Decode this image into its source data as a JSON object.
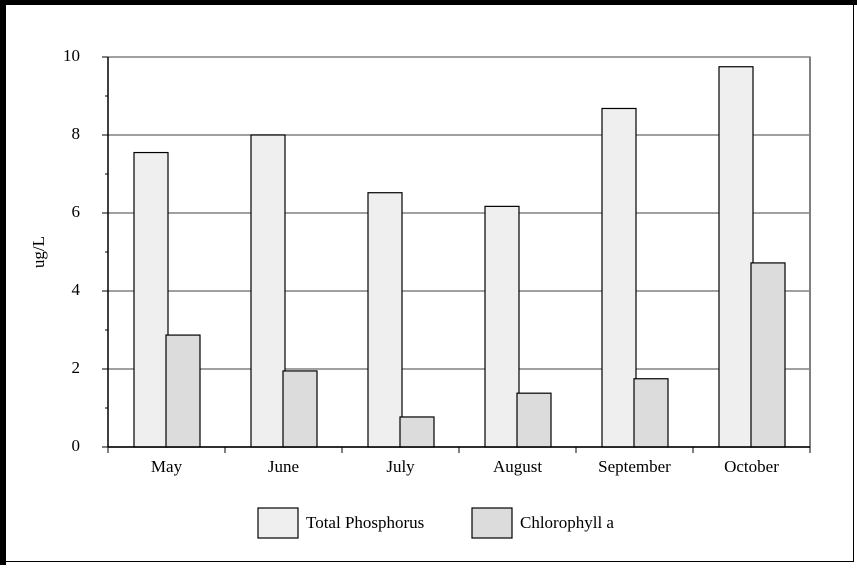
{
  "chart_data": {
    "type": "bar",
    "categories": [
      "May",
      "June",
      "July",
      "August",
      "September",
      "October"
    ],
    "series": [
      {
        "name": "Total Phosphorus",
        "color": "#efefef",
        "values": [
          7.55,
          8.0,
          6.52,
          6.17,
          8.68,
          9.75
        ]
      },
      {
        "name": "Chlorophyll a",
        "color": "#dcdcdc",
        "values": [
          2.87,
          1.95,
          0.77,
          1.38,
          1.75,
          4.72
        ]
      }
    ],
    "y_label": "ug/L",
    "ylim": [
      0,
      10
    ],
    "yticks": [
      0,
      2,
      4,
      6,
      8,
      10
    ],
    "grid": true,
    "legend": "bottom"
  }
}
